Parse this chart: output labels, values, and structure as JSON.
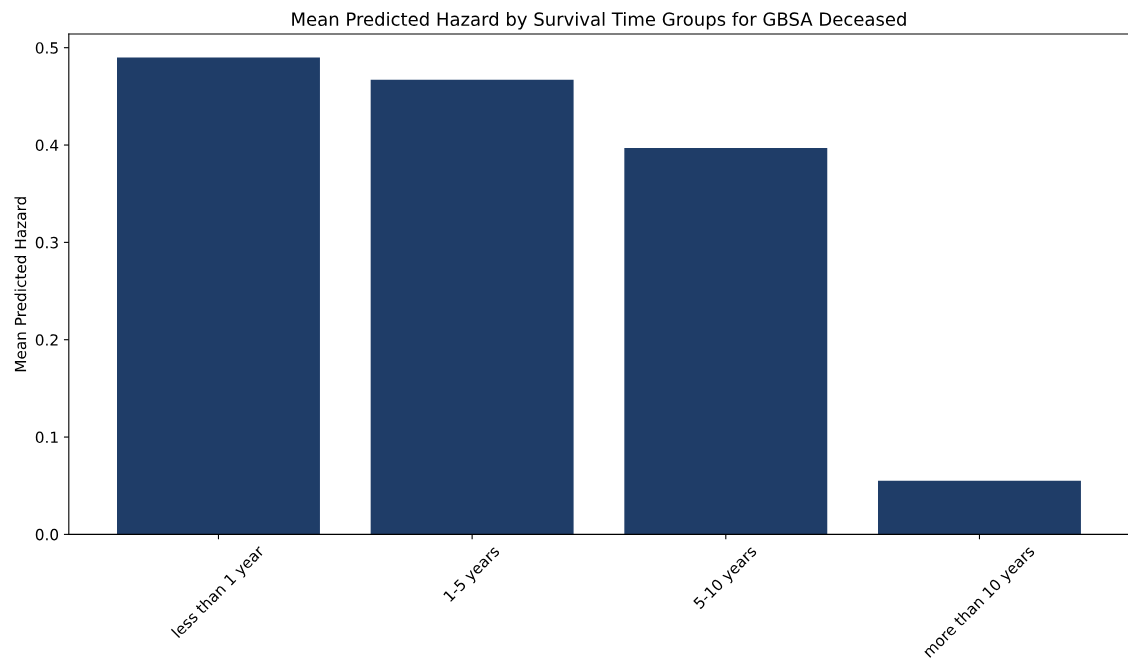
{
  "chart_data": {
    "type": "bar",
    "title": "Mean Predicted Hazard by Survival Time Groups for GBSA Deceased",
    "ylabel": "Mean Predicted Hazard",
    "categories": [
      "less than 1 year",
      "1-5 years",
      "5-10 years",
      "more than 10 years"
    ],
    "values": [
      0.49,
      0.467,
      0.397,
      0.055
    ],
    "color": "#1f3d68",
    "ylim": [
      0,
      0.514
    ],
    "yticks": [
      {
        "value": 0,
        "label": "0.0"
      },
      0.1,
      0.2,
      0.3,
      0.4,
      0.5
    ],
    "grid": false
  }
}
